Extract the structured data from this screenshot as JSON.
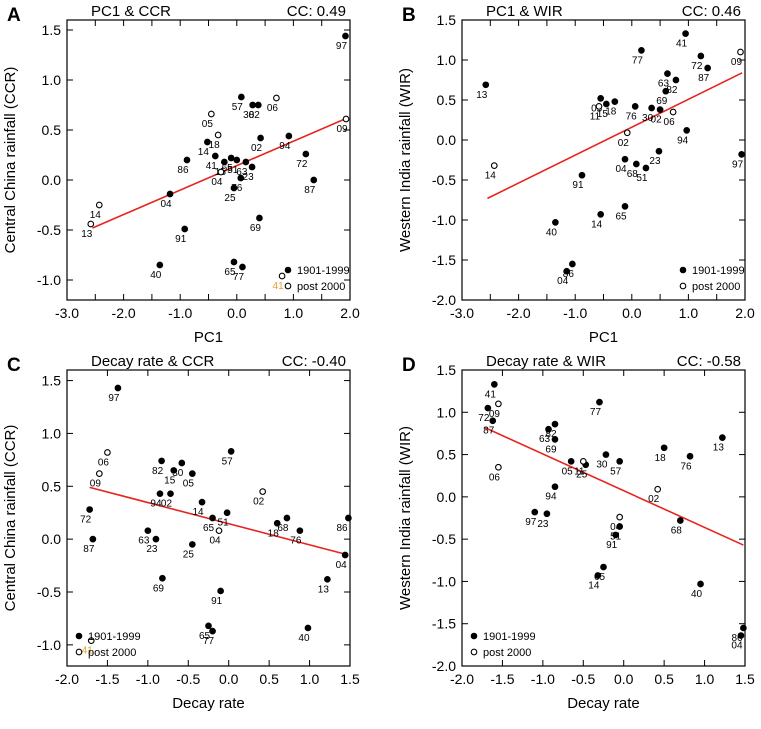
{
  "figure": {
    "legend_old": "1901-1999",
    "legend_new": "post 2000"
  },
  "colors": {
    "fit_line": "#e8231e",
    "highlight_label": "#e0a030",
    "marker": "#000000"
  },
  "chart_data": [
    {
      "type": "scatter",
      "panel": "A",
      "title": "PC1 & CCR",
      "cc": "CC: 0.49",
      "xlabel": "PC1",
      "ylabel": "Central China rainfall (CCR)",
      "xlim": [
        -3.0,
        2.0
      ],
      "ylim": [
        -1.2,
        1.6
      ],
      "xticks": [
        -3.0,
        -2.5,
        -2.0,
        -1.5,
        -1.0,
        -0.5,
        0.0,
        0.5,
        1.0,
        1.5,
        2.0
      ],
      "xtick_labels": [
        "-3.0",
        "",
        "-2.0",
        "",
        "-1.0",
        "",
        "0.0",
        "",
        "1.0",
        "",
        "2.0"
      ],
      "yticks": [
        -1.0,
        -0.5,
        0.0,
        0.5,
        1.0,
        1.5
      ],
      "ytick_labels": [
        "-1.0",
        "-0.5",
        "0.0",
        "0.5",
        "1.0",
        "1.5"
      ],
      "legend": "bottom-right",
      "fit": {
        "x": [
          -2.55,
          1.95
        ],
        "y": [
          -0.48,
          0.62
        ]
      },
      "points_1901_1999": [
        {
          "label": "97",
          "x": 1.92,
          "y": 1.44
        },
        {
          "label": "57",
          "x": 0.08,
          "y": 0.83
        },
        {
          "label": "30",
          "x": 0.28,
          "y": 0.75
        },
        {
          "label": "82",
          "x": 0.38,
          "y": 0.75
        },
        {
          "label": "94",
          "x": 0.92,
          "y": 0.44
        },
        {
          "label": "72",
          "x": 1.22,
          "y": 0.26
        },
        {
          "label": "87",
          "x": 1.36,
          "y": 0.0
        },
        {
          "label": "02",
          "x": 0.42,
          "y": 0.42
        },
        {
          "label": "14",
          "x": -0.52,
          "y": 0.38
        },
        {
          "label": "86",
          "x": -0.88,
          "y": 0.2
        },
        {
          "label": "41",
          "x": -0.38,
          "y": 0.24
        },
        {
          "label": "65",
          "x": -0.1,
          "y": 0.22
        },
        {
          "label": "51",
          "x": 0.0,
          "y": 0.2
        },
        {
          "label": "15",
          "x": -0.22,
          "y": 0.18
        },
        {
          "label": "63",
          "x": 0.16,
          "y": 0.18
        },
        {
          "label": "76",
          "x": 0.07,
          "y": 0.02
        },
        {
          "label": "23",
          "x": 0.27,
          "y": 0.13
        },
        {
          "label": "25",
          "x": -0.05,
          "y": -0.08
        },
        {
          "label": "04",
          "x": -1.18,
          "y": -0.14
        },
        {
          "label": "91",
          "x": -0.92,
          "y": -0.49
        },
        {
          "label": "69",
          "x": 0.4,
          "y": -0.38
        },
        {
          "label": "40",
          "x": -1.36,
          "y": -0.85
        },
        {
          "label": "65",
          "x": -0.05,
          "y": -0.82
        },
        {
          "label": "77",
          "x": 0.1,
          "y": -0.87
        }
      ],
      "points_post_2000": [
        {
          "label": "09",
          "x": 1.93,
          "y": 0.61
        },
        {
          "label": "06",
          "x": 0.7,
          "y": 0.82
        },
        {
          "label": "05",
          "x": -0.45,
          "y": 0.66
        },
        {
          "label": "18",
          "x": -0.33,
          "y": 0.45
        },
        {
          "label": "04",
          "x": -0.28,
          "y": 0.08
        },
        {
          "label": "14",
          "x": -2.43,
          "y": -0.25
        },
        {
          "label": "13",
          "x": -2.58,
          "y": -0.44
        },
        {
          "label": "41",
          "x": 0.8,
          "y": -0.96
        }
      ]
    },
    {
      "type": "scatter",
      "panel": "B",
      "title": "PC1 & WIR",
      "cc": "CC: 0.46",
      "xlabel": "PC1",
      "ylabel": "Western India rainfall (WIR)",
      "xlim": [
        -3.0,
        2.0
      ],
      "ylim": [
        -2.0,
        1.5
      ],
      "xticks": [
        -3.0,
        -2.5,
        -2.0,
        -1.5,
        -1.0,
        -0.5,
        0.0,
        0.5,
        1.0,
        1.5,
        2.0
      ],
      "xtick_labels": [
        "-3.0",
        "",
        "-2.0",
        "",
        "-1.0",
        "",
        "0.0",
        "",
        "1.0",
        "",
        "2.0"
      ],
      "yticks": [
        -2.0,
        -1.5,
        -1.0,
        -0.5,
        0.0,
        0.5,
        1.0,
        1.5
      ],
      "ytick_labels": [
        "-2.0",
        "-1.5",
        "-1.0",
        "-0.5",
        "0.0",
        "0.5",
        "1.0",
        "1.5"
      ],
      "legend": "bottom-right",
      "fit": {
        "x": [
          -2.55,
          1.95
        ],
        "y": [
          -0.73,
          0.84
        ]
      },
      "points_1901_1999": [
        {
          "label": "13",
          "x": -2.58,
          "y": 0.69
        },
        {
          "label": "41",
          "x": 0.95,
          "y": 1.33
        },
        {
          "label": "77",
          "x": 0.17,
          "y": 1.12
        },
        {
          "label": "72",
          "x": 1.22,
          "y": 1.05
        },
        {
          "label": "87",
          "x": 1.34,
          "y": 0.9
        },
        {
          "label": "63",
          "x": 0.63,
          "y": 0.83
        },
        {
          "label": "82",
          "x": 0.78,
          "y": 0.75
        },
        {
          "label": "69",
          "x": 0.6,
          "y": 0.61
        },
        {
          "label": "05",
          "x": -0.55,
          "y": 0.52
        },
        {
          "label": "15",
          "x": -0.45,
          "y": 0.45
        },
        {
          "label": "18",
          "x": -0.3,
          "y": 0.48
        },
        {
          "label": "76",
          "x": 0.06,
          "y": 0.42
        },
        {
          "label": "30",
          "x": 0.35,
          "y": 0.4
        },
        {
          "label": "02",
          "x": 0.5,
          "y": 0.38
        },
        {
          "label": "94",
          "x": 0.97,
          "y": 0.12
        },
        {
          "label": "23",
          "x": 0.48,
          "y": -0.14
        },
        {
          "label": "04",
          "x": -0.12,
          "y": -0.24
        },
        {
          "label": "68",
          "x": 0.08,
          "y": -0.3
        },
        {
          "label": "51",
          "x": 0.25,
          "y": -0.35
        },
        {
          "label": "91",
          "x": -0.88,
          "y": -0.44
        },
        {
          "label": "97",
          "x": 1.94,
          "y": -0.18
        },
        {
          "label": "14",
          "x": -0.55,
          "y": -0.93
        },
        {
          "label": "65",
          "x": -0.12,
          "y": -0.83
        },
        {
          "label": "40",
          "x": -1.35,
          "y": -1.03
        },
        {
          "label": "86",
          "x": -1.05,
          "y": -1.55
        },
        {
          "label": "04",
          "x": -1.15,
          "y": -1.64
        }
      ],
      "points_post_2000": [
        {
          "label": "09",
          "x": 1.92,
          "y": 1.1
        },
        {
          "label": "11",
          "x": -0.58,
          "y": 0.42
        },
        {
          "label": "06",
          "x": 0.73,
          "y": 0.35
        },
        {
          "label": "02",
          "x": -0.08,
          "y": 0.09
        },
        {
          "label": "14",
          "x": -2.43,
          "y": -0.32
        }
      ]
    },
    {
      "type": "scatter",
      "panel": "C",
      "title": "Decay rate & CCR",
      "cc": "CC: -0.40",
      "xlabel": "Decay rate",
      "ylabel": "Central China rainfall (CCR)",
      "xlim": [
        -2.0,
        1.5
      ],
      "ylim": [
        -1.2,
        1.6
      ],
      "xticks": [
        -2.0,
        -1.5,
        -1.0,
        -0.5,
        0.0,
        0.5,
        1.0,
        1.5
      ],
      "xtick_labels": [
        "-2.0",
        "-1.5",
        "-1.0",
        "-0.5",
        "0.0",
        "0.5",
        "1.0",
        "1.5"
      ],
      "yticks": [
        -1.0,
        -0.5,
        0.0,
        0.5,
        1.0,
        1.5
      ],
      "ytick_labels": [
        "-1.0",
        "-0.5",
        "0.0",
        "0.5",
        "1.0",
        "1.5"
      ],
      "legend": "bottom-left",
      "fit": {
        "x": [
          -1.72,
          1.48
        ],
        "y": [
          0.49,
          -0.15
        ]
      },
      "points_1901_1999": [
        {
          "label": "97",
          "x": -1.37,
          "y": 1.43
        },
        {
          "label": "57",
          "x": 0.03,
          "y": 0.83
        },
        {
          "label": "82",
          "x": -0.83,
          "y": 0.74
        },
        {
          "label": "30",
          "x": -0.58,
          "y": 0.72
        },
        {
          "label": "15",
          "x": -0.68,
          "y": 0.65
        },
        {
          "label": "05",
          "x": -0.45,
          "y": 0.62
        },
        {
          "label": "94",
          "x": -0.85,
          "y": 0.43
        },
        {
          "label": "02",
          "x": -0.72,
          "y": 0.43
        },
        {
          "label": "14",
          "x": -0.33,
          "y": 0.35
        },
        {
          "label": "72",
          "x": -1.72,
          "y": 0.28
        },
        {
          "label": "51",
          "x": -0.02,
          "y": 0.25
        },
        {
          "label": "65",
          "x": -0.2,
          "y": 0.2
        },
        {
          "label": "18",
          "x": 0.6,
          "y": 0.15
        },
        {
          "label": "68",
          "x": 0.72,
          "y": 0.2
        },
        {
          "label": "76",
          "x": 0.88,
          "y": 0.08
        },
        {
          "label": "63",
          "x": -1.0,
          "y": 0.08
        },
        {
          "label": "23",
          "x": -0.9,
          "y": 0.0
        },
        {
          "label": "87",
          "x": -1.68,
          "y": 0.0
        },
        {
          "label": "86",
          "x": 1.48,
          "y": 0.2
        },
        {
          "label": "04",
          "x": 1.44,
          "y": -0.15
        },
        {
          "label": "25",
          "x": -0.45,
          "y": -0.05
        },
        {
          "label": "69",
          "x": -0.82,
          "y": -0.37
        },
        {
          "label": "13",
          "x": 1.22,
          "y": -0.38
        },
        {
          "label": "91",
          "x": -0.1,
          "y": -0.49
        },
        {
          "label": "40",
          "x": 0.98,
          "y": -0.84
        },
        {
          "label": "65",
          "x": -0.25,
          "y": -0.82
        },
        {
          "label": "77",
          "x": -0.2,
          "y": -0.87
        }
      ],
      "points_post_2000": [
        {
          "label": "06",
          "x": -1.5,
          "y": 0.82
        },
        {
          "label": "09",
          "x": -1.6,
          "y": 0.62
        },
        {
          "label": "02",
          "x": 0.42,
          "y": 0.45
        },
        {
          "label": "04",
          "x": -0.12,
          "y": 0.08
        },
        {
          "label": "41",
          "x": -1.7,
          "y": -0.96
        }
      ]
    },
    {
      "type": "scatter",
      "panel": "D",
      "title": "Decay rate & WIR",
      "cc": "CC: -0.58",
      "xlabel": "Decay rate",
      "ylabel": "Western India rainfall (WIR)",
      "xlim": [
        -2.0,
        1.5
      ],
      "ylim": [
        -2.0,
        1.5
      ],
      "xticks": [
        -2.0,
        -1.5,
        -1.0,
        -0.5,
        0.0,
        0.5,
        1.0,
        1.5
      ],
      "xtick_labels": [
        "-2.0",
        "-1.5",
        "-1.0",
        "-0.5",
        "0.0",
        "0.5",
        "1.0",
        "1.5"
      ],
      "yticks": [
        -2.0,
        -1.5,
        -1.0,
        -0.5,
        0.0,
        0.5,
        1.0,
        1.5
      ],
      "ytick_labels": [
        "-2.0",
        "-1.5",
        "-1.0",
        "-0.5",
        "0.0",
        "0.5",
        "1.0",
        "1.5"
      ],
      "legend": "bottom-left",
      "fit": {
        "x": [
          -1.72,
          1.48
        ],
        "y": [
          0.82,
          -0.57
        ]
      },
      "points_1901_1999": [
        {
          "label": "41",
          "x": -1.6,
          "y": 1.33
        },
        {
          "label": "72",
          "x": -1.68,
          "y": 1.05
        },
        {
          "label": "87",
          "x": -1.62,
          "y": 0.9
        },
        {
          "label": "77",
          "x": -0.3,
          "y": 1.12
        },
        {
          "label": "82",
          "x": -0.85,
          "y": 0.86
        },
        {
          "label": "63",
          "x": -0.93,
          "y": 0.8
        },
        {
          "label": "69",
          "x": -0.85,
          "y": 0.68
        },
        {
          "label": "13",
          "x": 1.22,
          "y": 0.7
        },
        {
          "label": "18",
          "x": 0.5,
          "y": 0.58
        },
        {
          "label": "76",
          "x": 0.82,
          "y": 0.48
        },
        {
          "label": "57",
          "x": -0.05,
          "y": 0.42
        },
        {
          "label": "30",
          "x": -0.22,
          "y": 0.5
        },
        {
          "label": "05",
          "x": -0.65,
          "y": 0.42
        },
        {
          "label": "25",
          "x": -0.47,
          "y": 0.38
        },
        {
          "label": "51",
          "x": -0.05,
          "y": -0.35
        },
        {
          "label": "91",
          "x": -0.1,
          "y": -0.45
        },
        {
          "label": "94",
          "x": -0.85,
          "y": 0.12
        },
        {
          "label": "97",
          "x": -1.1,
          "y": -0.18
        },
        {
          "label": "23",
          "x": -0.95,
          "y": -0.2
        },
        {
          "label": "68",
          "x": 0.7,
          "y": -0.28
        },
        {
          "label": "65",
          "x": -0.25,
          "y": -0.83
        },
        {
          "label": "14",
          "x": -0.32,
          "y": -0.93
        },
        {
          "label": "40",
          "x": 0.95,
          "y": -1.03
        },
        {
          "label": "86",
          "x": 1.48,
          "y": -1.55
        },
        {
          "label": "04",
          "x": 1.45,
          "y": -1.64
        }
      ],
      "points_post_2000": [
        {
          "label": "09",
          "x": -1.55,
          "y": 1.1
        },
        {
          "label": "06",
          "x": -1.55,
          "y": 0.35
        },
        {
          "label": "11",
          "x": -0.5,
          "y": 0.42
        },
        {
          "label": "04",
          "x": -0.05,
          "y": -0.24
        },
        {
          "label": "02",
          "x": 0.42,
          "y": 0.09
        }
      ]
    }
  ]
}
